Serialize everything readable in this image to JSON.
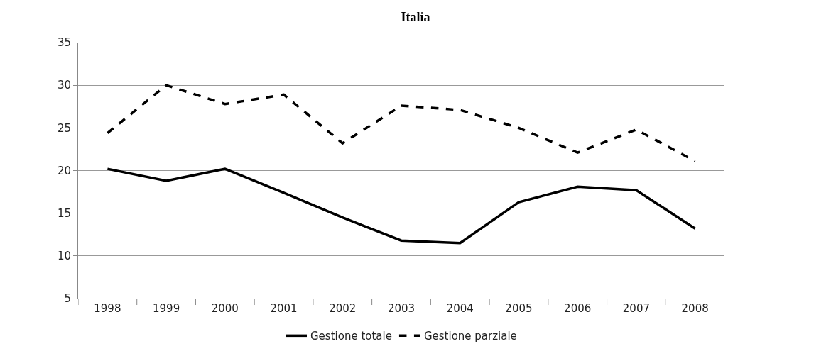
{
  "chart_data": {
    "type": "line",
    "title": "Italia",
    "categories": [
      "1998",
      "1999",
      "2000",
      "2001",
      "2002",
      "2003",
      "2004",
      "2005",
      "2006",
      "2007",
      "2008"
    ],
    "series": [
      {
        "name": "Gestione totale",
        "color": "#000000",
        "line_style": "solid",
        "values": [
          20.2,
          18.8,
          20.2,
          17.4,
          14.5,
          11.8,
          11.5,
          16.3,
          18.1,
          17.7,
          13.2
        ]
      },
      {
        "name": "Gestione parziale",
        "color": "#000000",
        "line_style": "dashed",
        "values": [
          24.4,
          30.0,
          27.8,
          28.9,
          23.2,
          27.6,
          27.1,
          25.0,
          22.1,
          24.8,
          21.1
        ]
      }
    ],
    "ylim": [
      5,
      35
    ],
    "yticks": [
      5,
      10,
      15,
      20,
      25,
      30,
      35
    ],
    "grid": "y",
    "legend": "bottom",
    "marker": "none"
  }
}
